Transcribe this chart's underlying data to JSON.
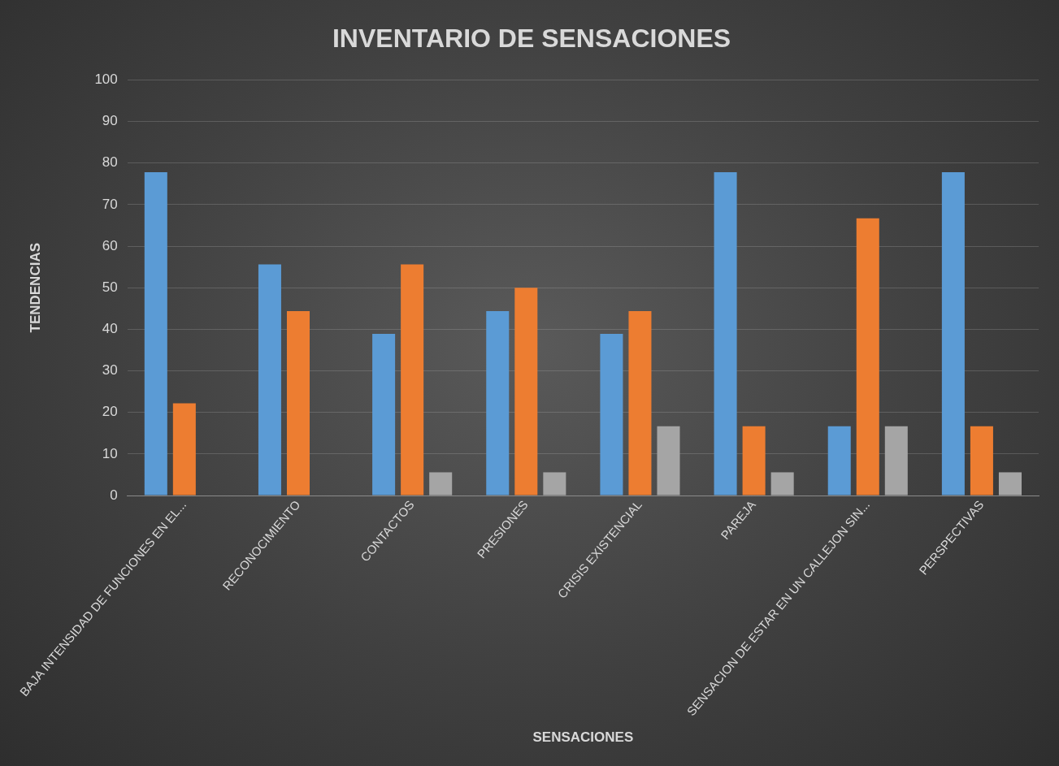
{
  "chart_data": {
    "type": "bar",
    "title": "INVENTARIO DE SENSACIONES",
    "xlabel": "SENSACIONES",
    "ylabel": "TENDENCIAS",
    "categories": [
      "BAJA INTENSIDAD DE FUNCIONES EN EL...",
      "RECONOCIMIENTO",
      "CONTACTOS",
      "PRESIONES",
      "CRISIS EXISTENCIAL",
      "PAREJA",
      "SENSACION DE ESTAR EN UN CALLEJON SIN...",
      "PERSPECTIVAS"
    ],
    "series": [
      {
        "color": "#5b9bd5",
        "values": [
          77.8,
          55.6,
          38.9,
          44.4,
          38.9,
          77.8,
          16.7,
          77.8
        ]
      },
      {
        "color": "#ed7d31",
        "values": [
          22.2,
          44.4,
          55.6,
          50,
          44.4,
          16.7,
          66.7,
          16.7
        ]
      },
      {
        "color": "#a5a5a5",
        "values": [
          0,
          0,
          5.6,
          5.6,
          16.7,
          5.6,
          16.7,
          5.6
        ]
      }
    ],
    "ylim": [
      0,
      100
    ],
    "yticks": [
      0,
      10,
      20,
      30,
      40,
      50,
      60,
      70,
      80,
      90,
      100
    ],
    "grid": "y",
    "legend": false
  }
}
